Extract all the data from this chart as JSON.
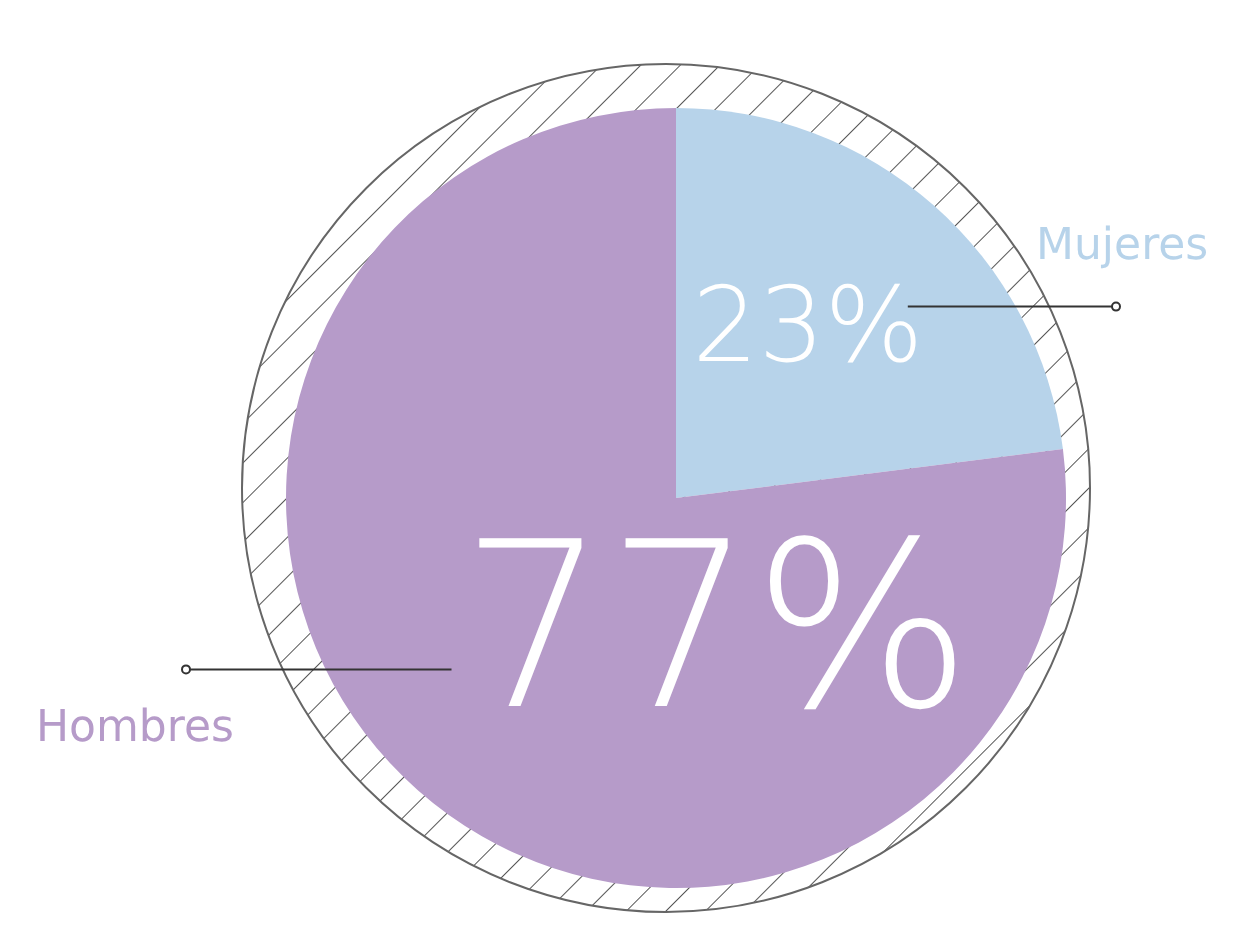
{
  "chart_data": {
    "type": "pie",
    "categories": [
      "Mujeres",
      "Hombres"
    ],
    "values": [
      23,
      77
    ],
    "colors": [
      "#b7d3ea",
      "#b69bc9"
    ],
    "value_labels": [
      "23%",
      "77%"
    ]
  }
}
